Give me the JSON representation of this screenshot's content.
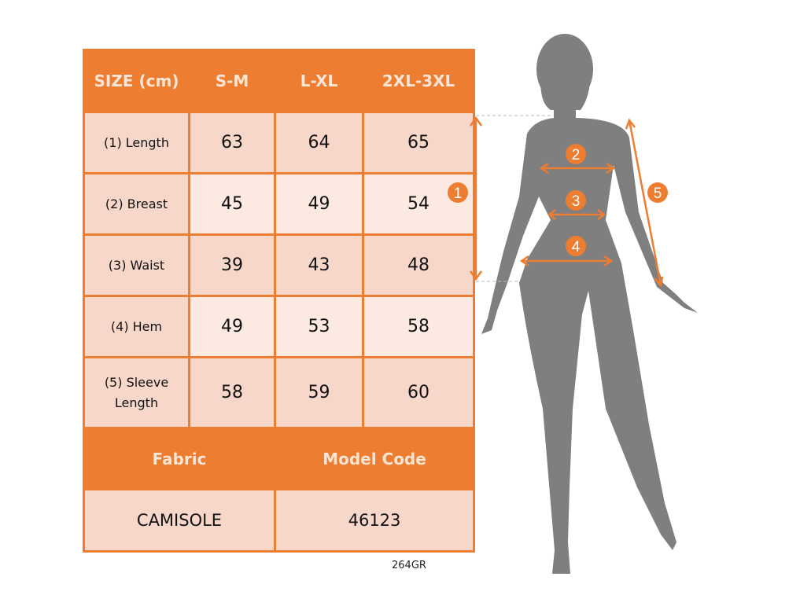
{
  "table": {
    "header": [
      "SIZE (cm)",
      "S-M",
      "L-XL",
      "2XL-3XL"
    ],
    "rows": [
      {
        "label": "(1) Length",
        "values": [
          "63",
          "64",
          "65"
        ]
      },
      {
        "label": "(2) Breast",
        "values": [
          "45",
          "49",
          "54"
        ]
      },
      {
        "label": "(3) Waist",
        "values": [
          "39",
          "43",
          "48"
        ]
      },
      {
        "label": "(4) Hem",
        "values": [
          "49",
          "53",
          "58"
        ]
      },
      {
        "label": "(5) Sleeve Length",
        "values": [
          "58",
          "59",
          "60"
        ]
      }
    ],
    "fabric_label": "Fabric",
    "model_code_label": "Model Code",
    "fabric_value": "CAMISOLE",
    "model_code_value": "46123"
  },
  "product_code": "264GR",
  "markers": [
    "1",
    "2",
    "3",
    "4",
    "5"
  ],
  "colors": {
    "accent": "#ed7d31",
    "row_dark": "#f8d7cb",
    "row_light": "#fbe9e2",
    "silhouette": "#7f7f7f"
  }
}
